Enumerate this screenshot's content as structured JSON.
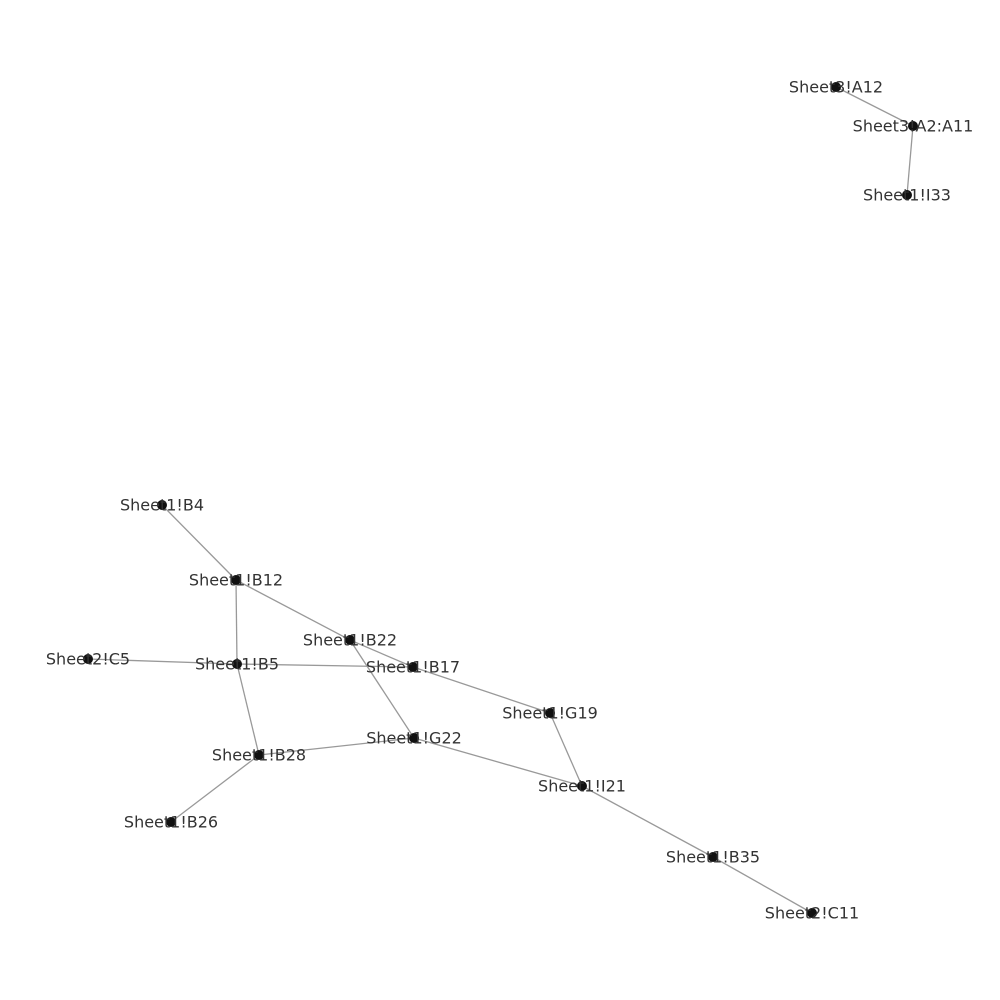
{
  "graph": {
    "colors": {
      "background": "#ffffff",
      "node": "#111111",
      "edge": "#999999",
      "label": "#333333"
    },
    "nodes": [
      {
        "id": "s3a12",
        "label": "Sheet3!A12"
      },
      {
        "id": "s3a2a11",
        "label": "Sheet3!A2:A11"
      },
      {
        "id": "s1i33",
        "label": "Sheet1!I33"
      },
      {
        "id": "s1b4",
        "label": "Sheet1!B4"
      },
      {
        "id": "s1b12",
        "label": "Sheet1!B12"
      },
      {
        "id": "s1b22",
        "label": "Sheet1!B22"
      },
      {
        "id": "s2c5",
        "label": "Sheet2!C5"
      },
      {
        "id": "s1b5",
        "label": "Sheet1!B5"
      },
      {
        "id": "s1b17",
        "label": "Sheet1!B17"
      },
      {
        "id": "s1g19",
        "label": "Sheet1!G19"
      },
      {
        "id": "s1g22",
        "label": "Sheet1!G22"
      },
      {
        "id": "s1b28",
        "label": "Sheet1!B28"
      },
      {
        "id": "s1i21",
        "label": "Sheet1!I21"
      },
      {
        "id": "s1b26",
        "label": "Sheet1!B26"
      },
      {
        "id": "s1b35",
        "label": "Sheet1!B35"
      },
      {
        "id": "s2c11",
        "label": "Sheet2!C11"
      }
    ],
    "edges": [
      [
        "s3a12",
        "s3a2a11"
      ],
      [
        "s3a2a11",
        "s1i33"
      ],
      [
        "s1b4",
        "s1b12"
      ],
      [
        "s1b12",
        "s1b22"
      ],
      [
        "s1b12",
        "s1b5"
      ],
      [
        "s1b22",
        "s1b17"
      ],
      [
        "s1b22",
        "s1g22"
      ],
      [
        "s2c5",
        "s1b5"
      ],
      [
        "s1b5",
        "s1b17"
      ],
      [
        "s1b5",
        "s1b28"
      ],
      [
        "s1b17",
        "s1g19"
      ],
      [
        "s1g19",
        "s1i21"
      ],
      [
        "s1g22",
        "s1b28"
      ],
      [
        "s1g22",
        "s1i21"
      ],
      [
        "s1b28",
        "s1b26"
      ],
      [
        "s1i21",
        "s1b35"
      ],
      [
        "s1b35",
        "s2c11"
      ]
    ]
  }
}
